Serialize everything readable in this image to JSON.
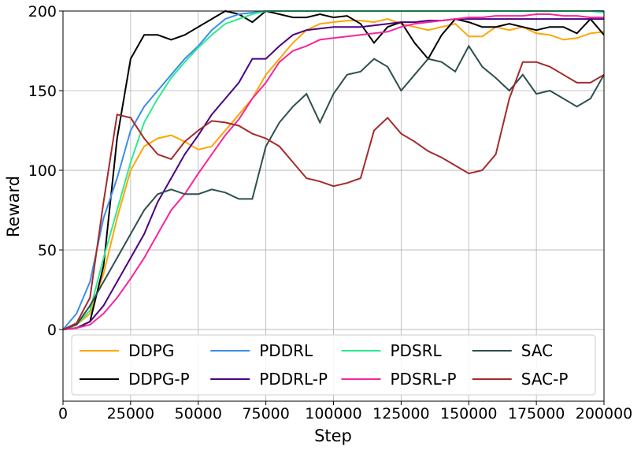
{
  "chart_data": {
    "type": "line",
    "xlabel": "Step",
    "ylabel": "Reward",
    "xlim": [
      0,
      200000
    ],
    "ylim": [
      -45,
      200
    ],
    "xticks": [
      0,
      25000,
      50000,
      75000,
      100000,
      125000,
      150000,
      175000,
      200000
    ],
    "yticks": [
      0,
      50,
      100,
      150,
      200
    ],
    "grid": true,
    "legend": {
      "loc": "lower center",
      "ncol": 4
    },
    "x": [
      0,
      5000,
      10000,
      15000,
      20000,
      25000,
      30000,
      35000,
      40000,
      45000,
      50000,
      55000,
      60000,
      65000,
      70000,
      75000,
      80000,
      85000,
      90000,
      95000,
      100000,
      105000,
      110000,
      115000,
      120000,
      125000,
      130000,
      135000,
      140000,
      145000,
      150000,
      155000,
      160000,
      165000,
      170000,
      175000,
      180000,
      185000,
      190000,
      195000,
      200000
    ],
    "series": [
      {
        "name": "DDPG",
        "color": "#FFA500",
        "values": [
          0,
          3,
          10,
          35,
          70,
          100,
          115,
          120,
          122,
          118,
          113,
          115,
          125,
          135,
          145,
          160,
          170,
          180,
          188,
          192,
          193,
          194,
          194,
          193,
          195,
          192,
          190,
          188,
          190,
          192,
          184,
          184,
          190,
          188,
          190,
          186,
          185,
          182,
          183,
          186,
          187
        ]
      },
      {
        "name": "DDPG-P",
        "color": "#000000",
        "values": [
          0,
          1,
          5,
          40,
          120,
          170,
          185,
          185,
          182,
          185,
          190,
          195,
          200,
          198,
          193,
          200,
          198,
          196,
          196,
          198,
          196,
          197,
          192,
          180,
          190,
          193,
          180,
          170,
          185,
          195,
          193,
          190,
          190,
          192,
          190,
          188,
          190,
          190,
          186,
          195,
          185
        ]
      },
      {
        "name": "PDDRL",
        "color": "#3A8EE8",
        "values": [
          0,
          10,
          30,
          70,
          95,
          125,
          140,
          150,
          160,
          170,
          178,
          188,
          195,
          198,
          199,
          200,
          200,
          200,
          200,
          200,
          200,
          200,
          200,
          200,
          200,
          200,
          200,
          200,
          200,
          200,
          200,
          200,
          200,
          200,
          200,
          200,
          200,
          200,
          200,
          200,
          200
        ]
      },
      {
        "name": "PDDRL-P",
        "color": "#4B0082",
        "values": [
          0,
          1,
          5,
          15,
          30,
          45,
          60,
          80,
          95,
          110,
          122,
          135,
          145,
          155,
          170,
          170,
          178,
          185,
          188,
          189,
          190,
          190,
          190,
          191,
          192,
          193,
          193,
          194,
          194,
          195,
          195,
          195,
          195,
          195,
          195,
          195,
          195,
          195,
          195,
          195,
          195
        ]
      },
      {
        "name": "PDSRL",
        "color": "#2EEB8F",
        "values": [
          0,
          3,
          12,
          45,
          75,
          105,
          130,
          145,
          158,
          168,
          177,
          185,
          192,
          195,
          198,
          200,
          200,
          200,
          200,
          200,
          200,
          200,
          200,
          200,
          200,
          200,
          200,
          200,
          200,
          200,
          200,
          200,
          200,
          200,
          200,
          200,
          200,
          200,
          200,
          200,
          199
        ]
      },
      {
        "name": "PDSRL-P",
        "color": "#F7259A",
        "values": [
          0,
          1,
          3,
          10,
          20,
          32,
          45,
          60,
          75,
          85,
          98,
          110,
          122,
          132,
          145,
          155,
          168,
          175,
          178,
          182,
          183,
          184,
          185,
          186,
          187,
          190,
          192,
          193,
          194,
          195,
          196,
          196,
          197,
          197,
          197,
          198,
          198,
          197,
          197,
          196,
          196
        ]
      },
      {
        "name": "SAC",
        "color": "#2F4F4F",
        "values": [
          0,
          3,
          15,
          30,
          45,
          60,
          75,
          85,
          88,
          85,
          85,
          88,
          86,
          82,
          82,
          115,
          130,
          140,
          148,
          130,
          148,
          160,
          162,
          170,
          165,
          150,
          160,
          170,
          168,
          162,
          178,
          165,
          158,
          150,
          160,
          148,
          150,
          145,
          140,
          145,
          160
        ]
      },
      {
        "name": "SAC-P",
        "color": "#A52A2A",
        "values": [
          0,
          4,
          20,
          80,
          135,
          133,
          120,
          110,
          107,
          118,
          125,
          131,
          130,
          128,
          123,
          120,
          115,
          105,
          95,
          93,
          90,
          92,
          95,
          125,
          133,
          123,
          118,
          112,
          108,
          103,
          98,
          100,
          110,
          145,
          168,
          168,
          165,
          160,
          155,
          155,
          160
        ]
      }
    ]
  }
}
